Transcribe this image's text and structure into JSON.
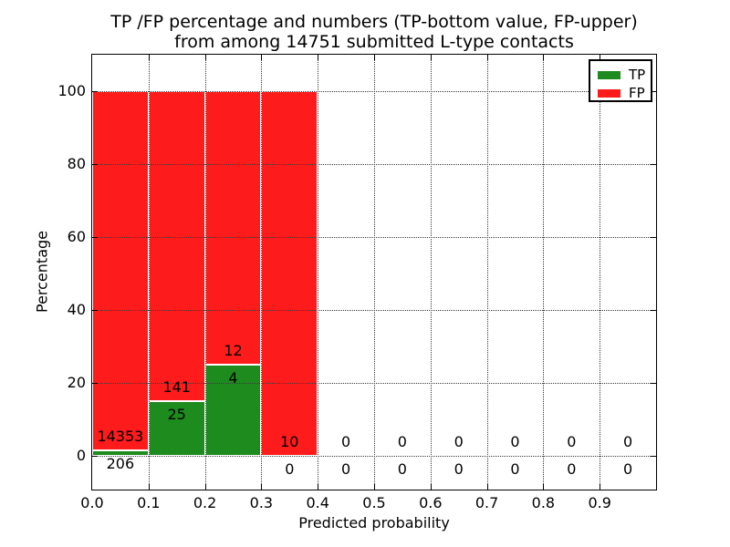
{
  "chart_data": {
    "type": "bar",
    "subtype": "stacked-percentage-histogram",
    "title_line1": "TP /FP percentage and numbers (TP-bottom value, FP-upper)",
    "title_line2": "from among 14751 submitted L-type contacts",
    "xlabel": "Predicted probability",
    "ylabel": "Percentage",
    "total_submitted_contacts": 14751,
    "x_tick_labels": [
      "0.0",
      "0.1",
      "0.2",
      "0.3",
      "0.4",
      "0.5",
      "0.6",
      "0.7",
      "0.8",
      "0.9"
    ],
    "y_tick_values": [
      0,
      20,
      40,
      60,
      80,
      100
    ],
    "xlim": [
      0.0,
      1.0
    ],
    "ylim": [
      -9,
      110
    ],
    "grid": "dotted, drawn over bars",
    "legend_position": "upper right",
    "bin_edges": [
      0.0,
      0.1,
      0.2,
      0.3,
      0.4,
      0.5,
      0.6,
      0.7,
      0.8,
      0.9,
      1.0
    ],
    "bins": [
      {
        "range": "0.0-0.1",
        "tp": 206,
        "fp": 14353,
        "tp_pct": 1.41,
        "fp_pct": 98.59
      },
      {
        "range": "0.1-0.2",
        "tp": 25,
        "fp": 141,
        "tp_pct": 15.06,
        "fp_pct": 84.94
      },
      {
        "range": "0.2-0.3",
        "tp": 4,
        "fp": 12,
        "tp_pct": 25.0,
        "fp_pct": 75.0
      },
      {
        "range": "0.3-0.4",
        "tp": 0,
        "fp": 10,
        "tp_pct": 0.0,
        "fp_pct": 100.0
      },
      {
        "range": "0.4-0.5",
        "tp": 0,
        "fp": 0,
        "tp_pct": 0.0,
        "fp_pct": 0.0
      },
      {
        "range": "0.5-0.6",
        "tp": 0,
        "fp": 0,
        "tp_pct": 0.0,
        "fp_pct": 0.0
      },
      {
        "range": "0.6-0.7",
        "tp": 0,
        "fp": 0,
        "tp_pct": 0.0,
        "fp_pct": 0.0
      },
      {
        "range": "0.7-0.8",
        "tp": 0,
        "fp": 0,
        "tp_pct": 0.0,
        "fp_pct": 0.0
      },
      {
        "range": "0.8-0.9",
        "tp": 0,
        "fp": 0,
        "tp_pct": 0.0,
        "fp_pct": 0.0
      },
      {
        "range": "0.9-1.0",
        "tp": 0,
        "fp": 0,
        "tp_pct": 0.0,
        "fp_pct": 0.0
      }
    ],
    "series": [
      {
        "name": "TP",
        "color": "#1e8b1e",
        "counts": [
          206,
          25,
          4,
          0,
          0,
          0,
          0,
          0,
          0,
          0
        ]
      },
      {
        "name": "FP",
        "color": "#fe1b1b",
        "counts": [
          14353,
          141,
          12,
          10,
          0,
          0,
          0,
          0,
          0,
          0
        ]
      }
    ],
    "legend": [
      {
        "label": "TP",
        "color": "#1e8b1e"
      },
      {
        "label": "FP",
        "color": "#fe1b1b"
      }
    ],
    "colors": {
      "tp_green": "#1e8b1e",
      "fp_red": "#fe1b1b",
      "background": "#ffffff",
      "text": "#000000",
      "bar_edge": "#ffffff"
    }
  }
}
